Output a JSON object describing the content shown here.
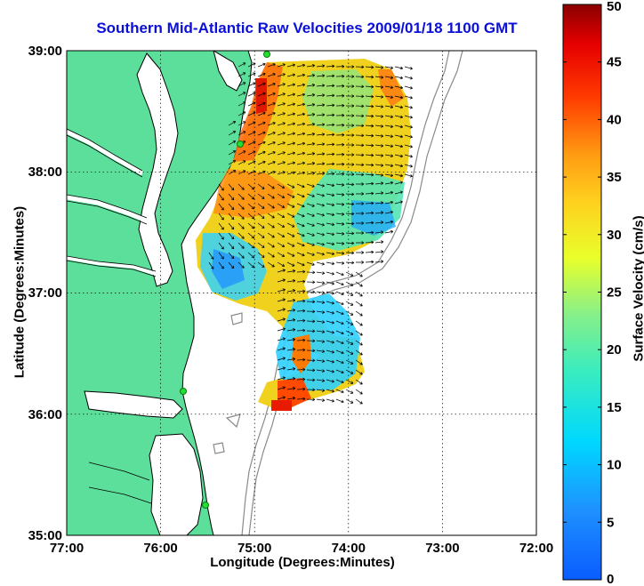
{
  "title": "Southern Mid-Atlantic Raw Velocities 2009/01/18 1100 GMT",
  "xlabel": "Longitude (Degrees:Minutes)",
  "ylabel": "Latitude (Degrees:Minutes)",
  "colorbar": {
    "label": "Surface Velocity (cm/s)",
    "min": 0,
    "max": 50,
    "ticks": [
      "0",
      "5",
      "10",
      "15",
      "20",
      "25",
      "30",
      "35",
      "40",
      "45",
      "50"
    ]
  },
  "x_ticks": [
    "77:00",
    "76:00",
    "75:00",
    "74:00",
    "73:00",
    "72:00"
  ],
  "y_ticks": [
    "39:00",
    "38:00",
    "37:00",
    "36:00",
    "35:00"
  ],
  "map": {
    "lon_range": [
      -77,
      -72
    ],
    "lat_range": [
      35,
      39
    ],
    "land_color": "#5cdf9a",
    "water_color": "#ffffff",
    "grid": "dotted",
    "stations": "green-dot-markers"
  }
}
